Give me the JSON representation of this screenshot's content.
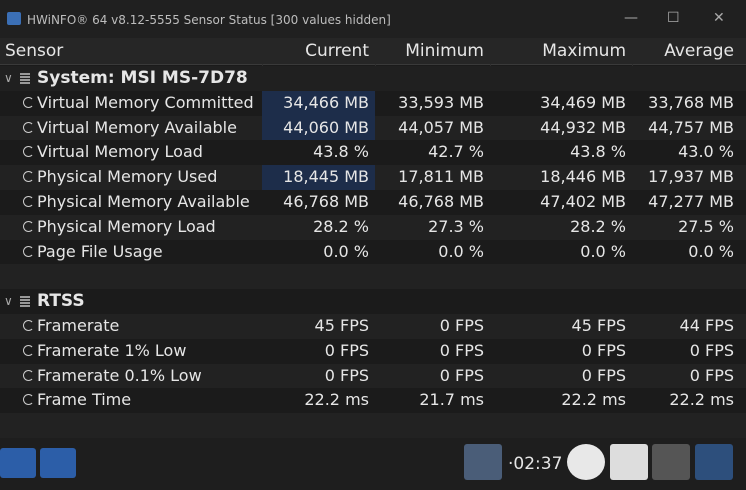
{
  "window": {
    "title": "HWiNFO® 64 v8.12-5555 Sensor Status [300 values hidden]"
  },
  "columns": [
    "Sensor",
    "Current",
    "Minimum",
    "Maximum",
    "Average"
  ],
  "groups": [
    {
      "name": "System: MSI MS-7D78",
      "rows": [
        [
          "Virtual Memory Committed",
          "34,466 MB",
          "33,593 MB",
          "34,469 MB",
          "33,768 MB"
        ],
        [
          "Virtual Memory Available",
          "44,060 MB",
          "44,057 MB",
          "44,932 MB",
          "44,757 MB"
        ],
        [
          "Virtual Memory Load",
          "43.8 %",
          "42.7 %",
          "43.8 %",
          "43.0 %"
        ],
        [
          "Physical Memory Used",
          "18,445 MB",
          "17,811 MB",
          "18,446 MB",
          "17,937 MB"
        ],
        [
          "Physical Memory Available",
          "46,768 MB",
          "46,768 MB",
          "47,402 MB",
          "47,277 MB"
        ],
        [
          "Physical Memory Load",
          "28.2 %",
          "27.3 %",
          "28.2 %",
          "27.5 %"
        ],
        [
          "Page File Usage",
          "0.0 %",
          "0.0 %",
          "0.0 %",
          "0.0 %"
        ]
      ]
    },
    {
      "name": "RTSS",
      "rows": [
        [
          "Framerate",
          "45 FPS",
          "0 FPS",
          "45 FPS",
          "44 FPS"
        ],
        [
          "Framerate 1% Low",
          "0 FPS",
          "0 FPS",
          "0 FPS",
          "0 FPS"
        ],
        [
          "Framerate 0.1% Low",
          "0 FPS",
          "0 FPS",
          "0 FPS",
          "0 FPS"
        ],
        [
          "Frame Time",
          "22.2 ms",
          "21.7 ms",
          "22.2 ms",
          "22.2 ms"
        ]
      ]
    }
  ],
  "footer": {
    "timer": "·02:37"
  }
}
